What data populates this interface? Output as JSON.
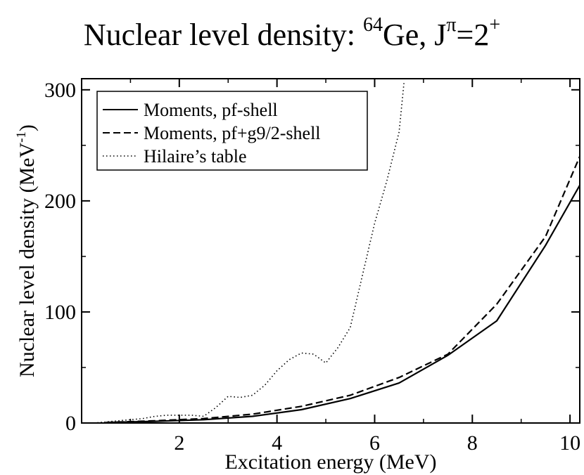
{
  "chart_data": {
    "type": "line",
    "title": {
      "prefix": "Nuclear level density: ",
      "mass_number": "64",
      "element": "Ge",
      "separator": ", J",
      "parity_symbol": "π",
      "equals_value": "=2",
      "parity_sign": "+"
    },
    "xlabel": "Excitation energy (MeV)",
    "ylabel": {
      "main": "Nuclear level density (MeV",
      "exponent": "-1",
      "close": ")"
    },
    "xlim": [
      0,
      10.2
    ],
    "ylim": [
      0,
      310
    ],
    "x_ticks": [
      2,
      4,
      6,
      8,
      10
    ],
    "y_ticks": [
      0,
      100,
      200,
      300
    ],
    "legend_position": "top-left",
    "series": [
      {
        "name": "Moments, pf-shell",
        "style": "solid",
        "x": [
          0.5,
          1.5,
          2.5,
          3.5,
          4.5,
          5.5,
          6.5,
          7.5,
          8.5,
          9.5,
          10.2
        ],
        "y": [
          0.5,
          1.5,
          3,
          6,
          12,
          22,
          36,
          61,
          92,
          160,
          214
        ]
      },
      {
        "name": "Moments, pf+g9/2-shell",
        "style": "dashed",
        "x": [
          0.5,
          1.5,
          2.5,
          3.5,
          4.5,
          5.5,
          6.5,
          7.5,
          8.5,
          9.5,
          10.2
        ],
        "y": [
          0.5,
          2,
          4,
          8,
          15,
          25,
          41,
          62,
          107,
          168,
          240
        ]
      },
      {
        "name": "Hilaire’s table",
        "style": "dotted",
        "x": [
          0.25,
          0.5,
          0.75,
          1.0,
          1.25,
          1.5,
          1.75,
          2.0,
          2.25,
          2.5,
          2.75,
          3.0,
          3.25,
          3.5,
          3.75,
          4.0,
          4.25,
          4.5,
          4.75,
          5.0,
          5.25,
          5.5,
          5.75,
          6.0,
          6.25,
          6.5,
          6.6
        ],
        "y": [
          0,
          1,
          2,
          3,
          4,
          6,
          7,
          7,
          7,
          6,
          14,
          24,
          23,
          25,
          34,
          47,
          57,
          63,
          62,
          54,
          68,
          86,
          133,
          180,
          218,
          262,
          306
        ]
      }
    ]
  }
}
